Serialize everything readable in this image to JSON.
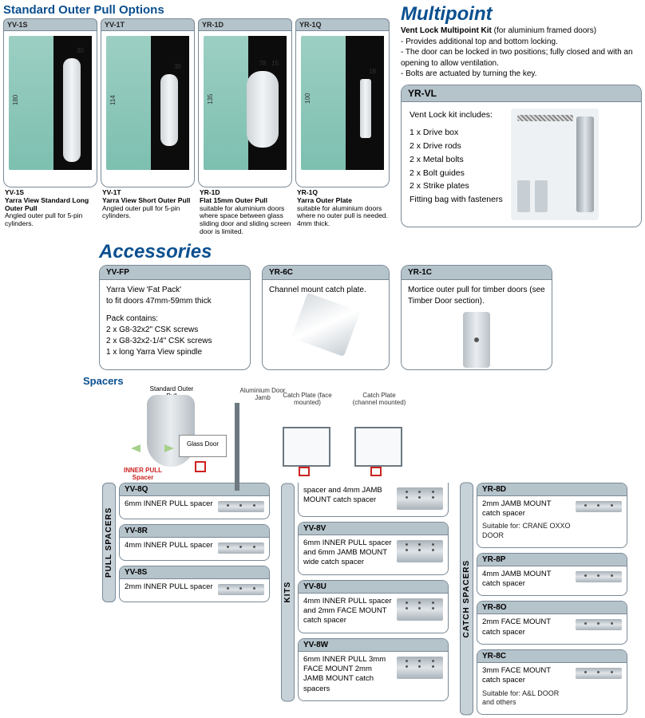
{
  "colors": {
    "heading": "#0a4f8f",
    "card_header_bg": "#b5c3cb",
    "card_border": "#7a8996",
    "door_glass": "#9ccfc3",
    "door_dark": "#0c0c0c",
    "red": "#c22222"
  },
  "pull_options": {
    "title": "Standard Outer Pull Options",
    "items": [
      {
        "code": "YV-1S",
        "name": "Yarra View Standard Long Outer Pull",
        "desc": "Angled outer pull for 5-pin cylinders.",
        "dim_h": "180",
        "dim_w": "30"
      },
      {
        "code": "YV-1T",
        "name": "Yarra View Short Outer Pull",
        "desc": "Angled outer pull for 5-pin cylinders.",
        "dim_h": "114",
        "dim_w": "30"
      },
      {
        "code": "YR-1D",
        "name": "Flat 15mm Outer Pull",
        "desc": "suitable for aluminium doors where space between glass sliding door and sliding screen door is limited.",
        "dim_h": "135",
        "dim_w": "78",
        "dim_w2": "15"
      },
      {
        "code": "YR-1Q",
        "name": "Yarra Outer Plate",
        "desc": "suitable for aluminium doors where no outer pull is needed. 4mm thick.",
        "dim_h": "100",
        "dim_w": "18"
      }
    ]
  },
  "multipoint": {
    "title": "Multipoint",
    "kit_title": "Vent Lock Multipoint Kit",
    "kit_title_note": "(for aluminium framed doors)",
    "bullets": [
      "Provides additional top and bottom locking.",
      "The door can be locked in two positions; fully closed and with an opening to allow ventilation.",
      "Bolts are actuated by turning the key."
    ],
    "card_code": "YR-VL",
    "includes_label": "Vent Lock kit includes:",
    "includes": [
      "1 x Drive box",
      "2 x Drive rods",
      "2 x Metal bolts",
      "2 x Bolt guides",
      "2 x Strike plates",
      "Fitting bag with fasteners"
    ]
  },
  "accessories": {
    "title": "Accessories",
    "cards": [
      {
        "code": "YV-FP",
        "line1": "Yarra View 'Fat Pack'",
        "line2": "to fit doors 47mm-59mm thick",
        "pack_label": "Pack contains:",
        "pack": [
          "2 x G8-32x2\" CSK screws",
          "2 x G8-32x2-1/4\" CSK screws",
          "1 x long Yarra View spindle"
        ]
      },
      {
        "code": "YR-6C",
        "line1": "Channel mount catch plate."
      },
      {
        "code": "YR-1C",
        "line1": "Mortice outer pull for timber doors (see Timber Door section)."
      }
    ]
  },
  "spacers": {
    "title": "Spacers",
    "diagram": {
      "std_pull": "Standard Outer Pull",
      "jamb": "Aluminium Door Jamb",
      "catch_face": "Catch Plate (face mounted)",
      "catch_channel": "Catch Plate (channel mounted)",
      "glass": "Glass Door",
      "inner": "INNER PULL Spacer"
    },
    "pull_label": "PULL SPACERS",
    "kits_label": "KITS",
    "catch_label": "CATCH SPACERS",
    "pull": [
      {
        "code": "YV-8Q",
        "desc": "6mm INNER PULL spacer"
      },
      {
        "code": "YV-8R",
        "desc": "4mm INNER PULL spacer"
      },
      {
        "code": "YV-8S",
        "desc": "2mm INNER PULL spacer"
      }
    ],
    "kits": [
      {
        "code": "",
        "desc": "spacer and 4mm JAMB MOUNT catch spacer",
        "partial": true
      },
      {
        "code": "YV-8V",
        "desc": "6mm INNER PULL spacer and 6mm JAMB MOUNT wide catch spacer"
      },
      {
        "code": "YV-8U",
        "desc": "4mm INNER PULL spacer and 2mm FACE MOUNT catch spacer"
      },
      {
        "code": "YV-8W",
        "desc": "6mm INNER PULL 3mm FACE MOUNT 2mm JAMB MOUNT catch spacers"
      }
    ],
    "catch": [
      {
        "code": "YR-8D",
        "desc": "2mm JAMB MOUNT catch spacer",
        "suit": "Suitable for: CRANE OXXO DOOR"
      },
      {
        "code": "YR-8P",
        "desc": "4mm JAMB MOUNT catch spacer"
      },
      {
        "code": "YR-8O",
        "desc": "2mm FACE MOUNT catch spacer"
      },
      {
        "code": "YR-8C",
        "desc": "3mm FACE MOUNT catch spacer",
        "suit": "Suitable for: A&L DOOR and others"
      }
    ]
  }
}
